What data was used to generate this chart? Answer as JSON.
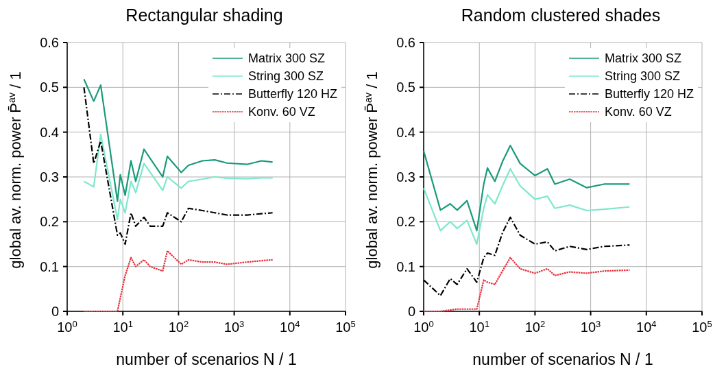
{
  "chart_data": [
    {
      "type": "line",
      "title": "Rectangular shading",
      "xlabel": "number of scenarios N / 1",
      "ylabel": "global av. norm. power P̄$^{av}$ / 1",
      "log": "x",
      "grid": true,
      "legend": "top right",
      "xlim": [
        1,
        100000
      ],
      "ylim": [
        0,
        0.6
      ],
      "xticks": [
        {
          "value": 1,
          "label": "10$^{0}$"
        },
        {
          "value": 10,
          "label": "10$^{1}$"
        },
        {
          "value": 100,
          "label": "10$^{2}$"
        },
        {
          "value": 1000,
          "label": "10$^{3}$"
        },
        {
          "value": 10000,
          "label": "10$^{4}$"
        },
        {
          "value": 100000,
          "label": "10$^{5}$"
        }
      ],
      "yticks": [
        0,
        0.1,
        0.2,
        0.3,
        0.4,
        0.5,
        0.6
      ],
      "x": [
        2,
        3,
        4,
        8,
        9,
        11,
        14,
        17,
        24,
        31,
        52,
        63,
        112,
        151,
        269,
        447,
        741,
        1700,
        3090,
        4900
      ],
      "series": [
        {
          "name": "Matrix 300 SZ",
          "color": "#1a9a7a",
          "line_style": "solid",
          "values": [
            0.518,
            0.469,
            0.505,
            0.246,
            0.305,
            0.259,
            0.336,
            0.29,
            0.362,
            0.341,
            0.3,
            0.346,
            0.31,
            0.326,
            0.336,
            0.338,
            0.331,
            0.328,
            0.336,
            0.333
          ]
        },
        {
          "name": "String 300 SZ",
          "color": "#7de8cc",
          "line_style": "solid",
          "values": [
            0.29,
            0.278,
            0.395,
            0.205,
            0.25,
            0.22,
            0.29,
            0.265,
            0.33,
            0.31,
            0.27,
            0.3,
            0.275,
            0.29,
            0.295,
            0.3,
            0.297,
            0.296,
            0.298,
            0.298
          ]
        },
        {
          "name": "Butterfly 120 HZ",
          "color": "#000000",
          "line_style": "dashed",
          "values": [
            0.5,
            0.33,
            0.38,
            0.17,
            0.175,
            0.15,
            0.22,
            0.19,
            0.21,
            0.19,
            0.19,
            0.22,
            0.2,
            0.23,
            0.225,
            0.22,
            0.215,
            0.215,
            0.218,
            0.22
          ]
        },
        {
          "name": "Konv. 60 VZ",
          "color": "#e8303a",
          "line_style": "dotted",
          "values": [
            0,
            0,
            0,
            0,
            0.03,
            0.08,
            0.12,
            0.1,
            0.115,
            0.1,
            0.09,
            0.135,
            0.105,
            0.115,
            0.11,
            0.11,
            0.105,
            0.11,
            0.113,
            0.115
          ]
        }
      ]
    },
    {
      "type": "line",
      "title": "Random clustered shades",
      "xlabel": "number of scenarios N / 1",
      "ylabel": "global av. norm. power P̄$^{av}$ / 1",
      "log": "x",
      "grid": true,
      "legend": "top right",
      "xlim": [
        1,
        100000
      ],
      "ylim": [
        0,
        0.6
      ],
      "xticks": [
        {
          "value": 1,
          "label": "10$^{0}$"
        },
        {
          "value": 10,
          "label": "10$^{1}$"
        },
        {
          "value": 100,
          "label": "10$^{2}$"
        },
        {
          "value": 1000,
          "label": "10$^{3}$"
        },
        {
          "value": 10000,
          "label": "10$^{4}$"
        },
        {
          "value": 100000,
          "label": "10$^{5}$"
        }
      ],
      "yticks": [
        0,
        0.1,
        0.2,
        0.3,
        0.4,
        0.5,
        0.6
      ],
      "x": [
        1,
        2,
        3,
        4,
        6,
        9,
        12,
        14,
        19,
        26,
        36,
        54,
        100,
        167,
        227,
        420,
        850,
        1740,
        5000
      ],
      "series": [
        {
          "name": "Matrix 300 SZ",
          "color": "#1a9a7a",
          "line_style": "solid",
          "values": [
            0.358,
            0.226,
            0.24,
            0.226,
            0.247,
            0.18,
            0.284,
            0.32,
            0.29,
            0.334,
            0.37,
            0.33,
            0.303,
            0.318,
            0.284,
            0.295,
            0.276,
            0.284,
            0.284
          ]
        },
        {
          "name": "String 300 SZ",
          "color": "#7de8cc",
          "line_style": "solid",
          "values": [
            0.275,
            0.18,
            0.2,
            0.185,
            0.203,
            0.15,
            0.23,
            0.26,
            0.24,
            0.28,
            0.318,
            0.28,
            0.25,
            0.257,
            0.23,
            0.237,
            0.225,
            0.228,
            0.233
          ]
        },
        {
          "name": "Butterfly 120 HZ",
          "color": "#000000",
          "line_style": "dashed",
          "values": [
            0.07,
            0.035,
            0.073,
            0.06,
            0.095,
            0.065,
            0.12,
            0.13,
            0.125,
            0.175,
            0.21,
            0.17,
            0.15,
            0.155,
            0.135,
            0.145,
            0.138,
            0.145,
            0.148
          ]
        },
        {
          "name": "Konv. 60 VZ",
          "color": "#e8303a",
          "line_style": "dotted",
          "values": [
            0,
            0,
            0.003,
            0.005,
            0.005,
            0.005,
            0.07,
            0.065,
            0.06,
            0.09,
            0.12,
            0.095,
            0.085,
            0.095,
            0.08,
            0.088,
            0.085,
            0.09,
            0.092
          ]
        }
      ]
    }
  ]
}
